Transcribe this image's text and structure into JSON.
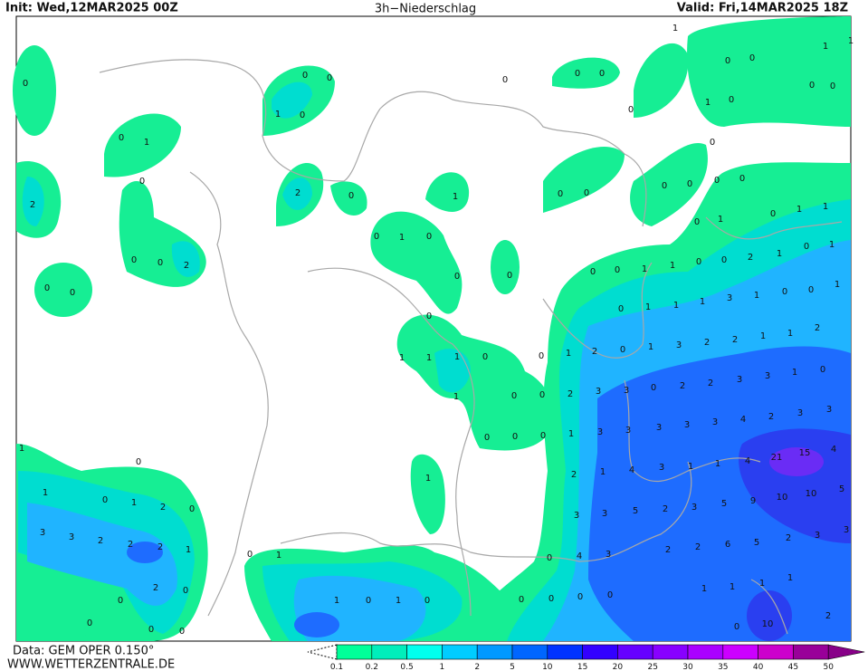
{
  "header": {
    "init": "Init: Wed,12MAR2025 00Z",
    "title": "3h−Niederschlag",
    "valid": "Valid: Fri,14MAR2025 18Z"
  },
  "footer": {
    "data": "Data: GEM OPER 0.150°",
    "site": "WWW.WETTERZENTRALE.DE"
  },
  "legend": {
    "levels": [
      0.1,
      0.2,
      0.5,
      1,
      2,
      5,
      10,
      15,
      20,
      25,
      30,
      35,
      40,
      45,
      50
    ],
    "colors": [
      "#00ff99",
      "#00eebb",
      "#00ffee",
      "#00ccff",
      "#0099ff",
      "#0066ff",
      "#0033ff",
      "#3300ff",
      "#6600ff",
      "#8800ff",
      "#aa00ff",
      "#cc00ff",
      "#cc00cc",
      "#990099"
    ],
    "over_color": "#880088"
  },
  "map": {
    "labels": [
      0,
      0,
      0,
      1,
      0,
      0,
      1,
      0,
      2,
      2,
      0,
      1,
      0,
      1,
      0,
      2,
      0,
      0,
      0,
      0,
      0,
      0,
      0,
      0,
      0,
      0,
      1,
      1,
      1,
      0,
      0,
      0,
      0,
      1,
      0,
      0,
      0,
      0,
      0,
      0,
      0,
      1,
      1,
      0,
      1,
      0,
      1,
      2,
      1,
      1,
      0,
      0,
      0,
      0,
      1,
      1,
      3,
      1,
      0,
      0,
      0,
      0,
      1,
      0,
      1,
      1,
      0,
      1,
      1,
      1,
      0,
      1,
      2,
      0,
      1,
      3,
      2,
      2,
      1,
      1,
      2,
      0,
      1,
      0,
      0,
      2,
      3,
      3,
      0,
      2,
      2,
      3,
      3,
      1,
      0,
      0,
      0,
      0,
      1,
      3,
      3,
      3,
      3,
      3,
      4,
      2,
      3,
      3,
      21,
      15,
      4,
      1,
      2,
      1,
      4,
      3,
      1,
      1,
      4,
      1,
      0,
      1,
      0,
      1,
      2,
      0,
      3,
      3,
      2,
      2,
      2,
      1,
      3,
      3,
      5,
      2,
      3,
      5,
      9,
      10,
      10,
      5,
      0,
      1,
      0,
      4,
      3,
      2,
      2,
      6,
      5,
      2,
      3,
      3,
      2,
      0,
      0,
      1,
      0,
      1,
      0,
      0,
      0,
      0,
      0,
      1,
      1,
      1,
      1,
      0,
      0,
      0,
      10,
      2,
      0
    ]
  }
}
